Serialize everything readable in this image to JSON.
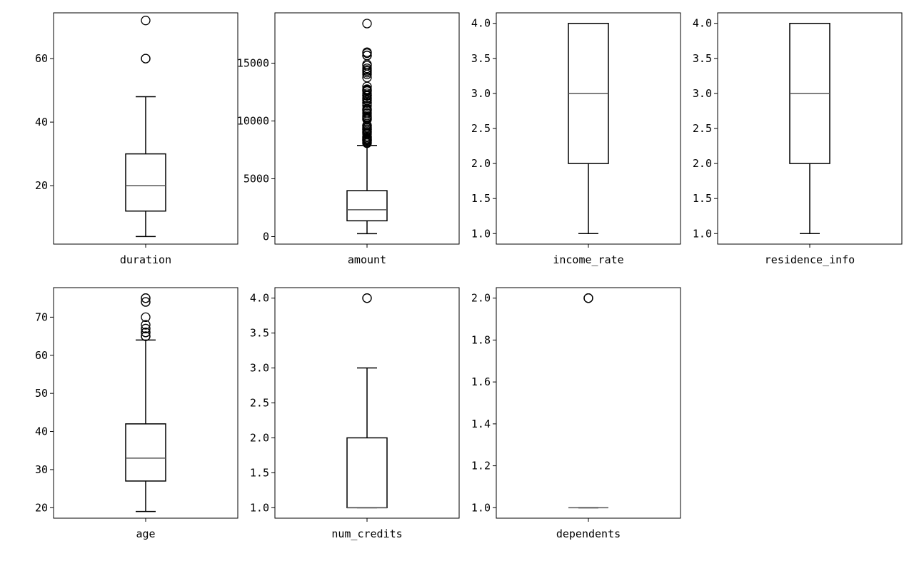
{
  "chart_data": [
    {
      "type": "box",
      "category": "duration",
      "ylim": [
        1.6,
        74.4
      ],
      "yticks": [
        20,
        40,
        60
      ],
      "ytick_labels": [
        "20",
        "40",
        "60"
      ],
      "whisker_low": 4,
      "q1": 12,
      "median": 20,
      "q3": 30,
      "whisker_high": 48,
      "outliers": [
        60,
        60,
        72
      ]
    },
    {
      "type": "box",
      "category": "amount",
      "ylim": [
        -650,
        19350
      ],
      "yticks": [
        0,
        5000,
        10000,
        15000
      ],
      "ytick_labels": [
        "0",
        "5000",
        "10000",
        "15000"
      ],
      "whisker_low": 250,
      "q1": 1366,
      "median": 2320,
      "q3": 3972,
      "whisker_high": 7882,
      "outliers": [
        8072,
        8133,
        8229,
        8318,
        8335,
        8358,
        8386,
        8471,
        8487,
        8588,
        8613,
        8648,
        8858,
        8947,
        9034,
        9055,
        9157,
        9271,
        9277,
        9283,
        9398,
        9436,
        9566,
        9572,
        9629,
        10127,
        10144,
        10222,
        10297,
        10366,
        10477,
        10623,
        10722,
        10875,
        10961,
        10974,
        11054,
        11328,
        11560,
        11590,
        11760,
        11816,
        11938,
        11998,
        12169,
        12204,
        12259,
        12389,
        12579,
        12612,
        12680,
        12749,
        12976,
        13756,
        14027,
        14179,
        14318,
        14421,
        14555,
        14782,
        14896,
        15653,
        15672,
        15857,
        15945,
        18424
      ]
    },
    {
      "type": "box",
      "category": "income_rate",
      "ylim": [
        0.85,
        4.15
      ],
      "yticks": [
        1.0,
        1.5,
        2.0,
        2.5,
        3.0,
        3.5,
        4.0
      ],
      "ytick_labels": [
        "1.0",
        "1.5",
        "2.0",
        "2.5",
        "3.0",
        "3.5",
        "4.0"
      ],
      "whisker_low": 1.0,
      "q1": 2.0,
      "median": 3.0,
      "q3": 4.0,
      "whisker_high": 4.0,
      "outliers": []
    },
    {
      "type": "box",
      "category": "residence_info",
      "ylim": [
        0.85,
        4.15
      ],
      "yticks": [
        1.0,
        1.5,
        2.0,
        2.5,
        3.0,
        3.5,
        4.0
      ],
      "ytick_labels": [
        "1.0",
        "1.5",
        "2.0",
        "2.5",
        "3.0",
        "3.5",
        "4.0"
      ],
      "whisker_low": 1.0,
      "q1": 2.0,
      "median": 3.0,
      "q3": 4.0,
      "whisker_high": 4.0,
      "outliers": []
    },
    {
      "type": "box",
      "category": "age",
      "ylim": [
        17.25,
        77.75
      ],
      "yticks": [
        20,
        30,
        40,
        50,
        60,
        70
      ],
      "ytick_labels": [
        "20",
        "30",
        "40",
        "50",
        "60",
        "70"
      ],
      "whisker_low": 19,
      "q1": 27,
      "median": 33,
      "q3": 42,
      "whisker_high": 64,
      "outliers": [
        65,
        65,
        65,
        66,
        66,
        66,
        67,
        67,
        68,
        70,
        74,
        74,
        75,
        75
      ]
    },
    {
      "type": "box",
      "category": "num_credits",
      "ylim": [
        0.85,
        4.15
      ],
      "yticks": [
        1.0,
        1.5,
        2.0,
        2.5,
        3.0,
        3.5,
        4.0
      ],
      "ytick_labels": [
        "1.0",
        "1.5",
        "2.0",
        "2.5",
        "3.0",
        "3.5",
        "4.0"
      ],
      "whisker_low": 1.0,
      "q1": 1.0,
      "median": 1.0,
      "q3": 2.0,
      "whisker_high": 3.0,
      "outliers": [
        4,
        4
      ]
    },
    {
      "type": "box",
      "category": "dependents",
      "ylim": [
        0.95,
        2.05
      ],
      "yticks": [
        1.0,
        1.2,
        1.4,
        1.6,
        1.8,
        2.0
      ],
      "ytick_labels": [
        "1.0",
        "1.2",
        "1.4",
        "1.6",
        "1.8",
        "2.0"
      ],
      "whisker_low": 1.0,
      "q1": 1.0,
      "median": 1.0,
      "q3": 1.0,
      "whisker_high": 1.0,
      "outliers": [
        2,
        2,
        2
      ]
    }
  ],
  "colors": {
    "box_edge": "#000000",
    "median": "#555555",
    "axes": "#000000",
    "background": "#ffffff"
  }
}
